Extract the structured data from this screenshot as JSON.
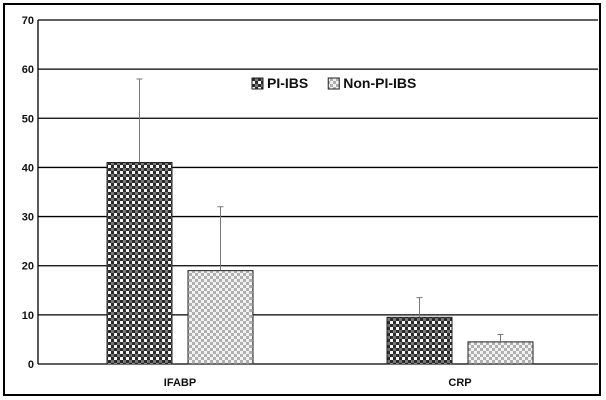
{
  "chart_data": {
    "type": "bar",
    "title": "",
    "xlabel": "",
    "ylabel": "",
    "ylim": [
      0,
      70
    ],
    "yticks": [
      0,
      10,
      20,
      30,
      40,
      50,
      60,
      70
    ],
    "grid": true,
    "legend_position": "top-center",
    "categories": [
      "IFABP",
      "CRP"
    ],
    "series": [
      {
        "name": "PI-IBS",
        "values": [
          41,
          9.5
        ],
        "error_upper": [
          58,
          13.5
        ],
        "fill": "dark-checker",
        "color": "#333333"
      },
      {
        "name": "Non-PI-IBS",
        "values": [
          19,
          4.5
        ],
        "error_upper": [
          32,
          6
        ],
        "fill": "light-checker",
        "color": "#b5b5b5"
      }
    ]
  }
}
